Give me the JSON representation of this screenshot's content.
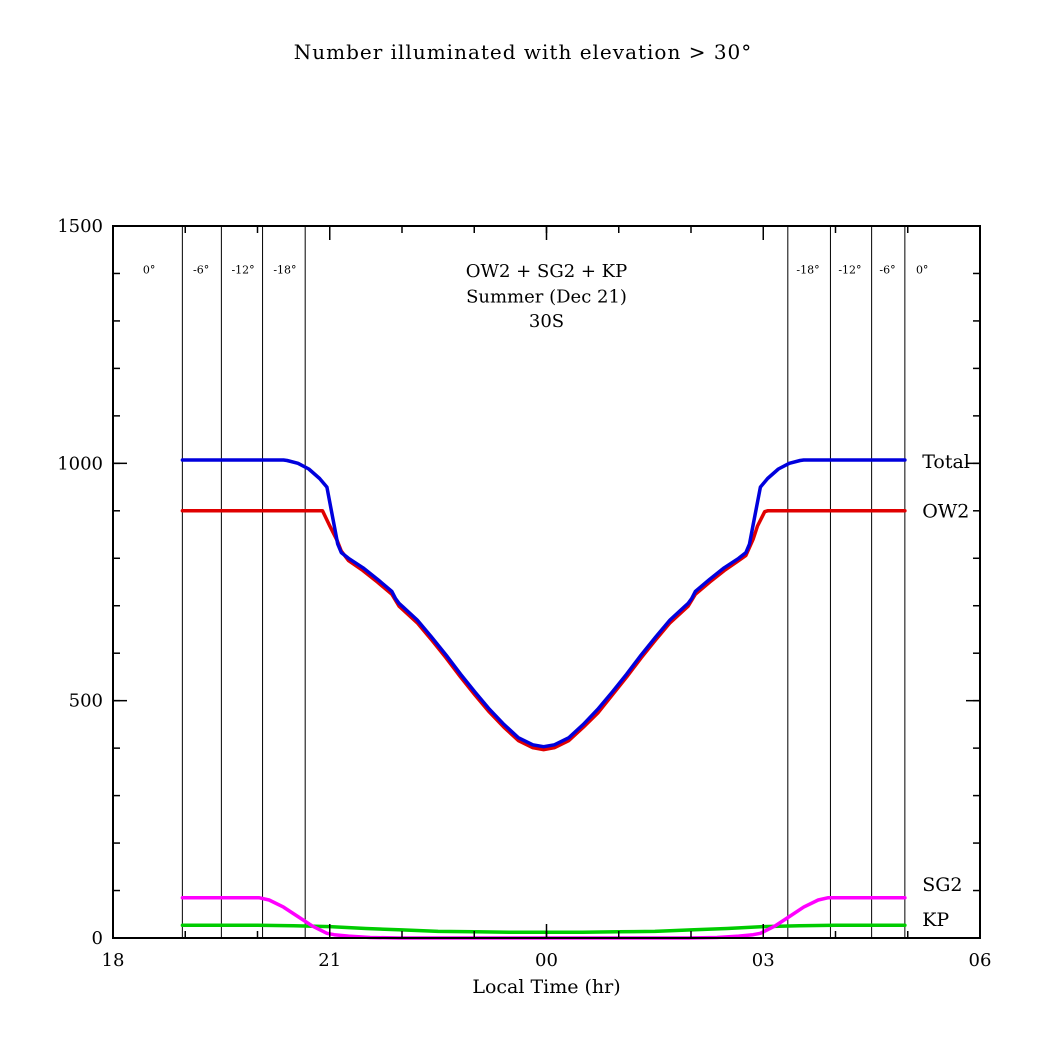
{
  "chart_data": {
    "type": "line",
    "title": "Number illuminated with elevation > 30°",
    "xlabel": "Local Time (hr)",
    "ylabel": "",
    "xlim": [
      18,
      30
    ],
    "ylim": [
      0,
      1500
    ],
    "grid": false,
    "x_minor_step": 1,
    "y_minor_step": 100,
    "x_major_ticks": [
      {
        "t": 18,
        "label": "18"
      },
      {
        "t": 21,
        "label": "21"
      },
      {
        "t": 24,
        "label": "00"
      },
      {
        "t": 27,
        "label": "03"
      },
      {
        "t": 30,
        "label": "06"
      }
    ],
    "y_major_ticks": [
      {
        "v": 0,
        "label": "0"
      },
      {
        "v": 500,
        "label": "500"
      },
      {
        "v": 1000,
        "label": "1000"
      },
      {
        "v": 1500,
        "label": "1500"
      }
    ],
    "annotations": [
      {
        "text": "OW2 + SG2 + KP",
        "t": 24,
        "v": 1405
      },
      {
        "text": "Summer (Dec 21)",
        "t": 24,
        "v": 1352
      },
      {
        "text": "30S",
        "t": 24,
        "v": 1300
      }
    ],
    "twilight_lines": [
      18.96,
      19.5,
      20.07,
      20.66,
      27.34,
      27.93,
      28.5,
      28.96
    ],
    "twilight_label_v": 1408,
    "twilight_labels": [
      {
        "text": "0°",
        "t": 18.5
      },
      {
        "text": "-6°",
        "t": 19.22
      },
      {
        "text": "-12°",
        "t": 19.8
      },
      {
        "text": "-18°",
        "t": 20.38
      },
      {
        "text": "-18°",
        "t": 27.62
      },
      {
        "text": "-12°",
        "t": 28.2
      },
      {
        "text": "-6°",
        "t": 28.72
      },
      {
        "text": "0°",
        "t": 29.2
      }
    ],
    "series": [
      {
        "name": "KP",
        "color": "#00cc00",
        "label_pos": {
          "t": 29.2,
          "v": 38
        },
        "points": [
          [
            18.96,
            27
          ],
          [
            20.0,
            27
          ],
          [
            20.5,
            26
          ],
          [
            21.0,
            24
          ],
          [
            21.5,
            20
          ],
          [
            22.0,
            17
          ],
          [
            22.5,
            14
          ],
          [
            23.0,
            13
          ],
          [
            23.5,
            12
          ],
          [
            24.0,
            12
          ],
          [
            24.5,
            12
          ],
          [
            25.0,
            13
          ],
          [
            25.5,
            14
          ],
          [
            26.0,
            17
          ],
          [
            26.5,
            20
          ],
          [
            27.0,
            24
          ],
          [
            27.5,
            26
          ],
          [
            28.0,
            27
          ],
          [
            28.5,
            27
          ],
          [
            28.96,
            27
          ]
        ]
      },
      {
        "name": "SG2",
        "color": "#ff00ff",
        "label_pos": {
          "t": 29.2,
          "v": 112
        },
        "points": [
          [
            18.96,
            85
          ],
          [
            19.5,
            85
          ],
          [
            20.02,
            85
          ],
          [
            20.16,
            80
          ],
          [
            20.36,
            65
          ],
          [
            20.56,
            45
          ],
          [
            20.76,
            25
          ],
          [
            20.96,
            10
          ],
          [
            21.06,
            7
          ],
          [
            21.26,
            4
          ],
          [
            21.56,
            1
          ],
          [
            21.96,
            0
          ],
          [
            23.0,
            0
          ],
          [
            24.0,
            0
          ],
          [
            25.0,
            0
          ],
          [
            25.96,
            0
          ],
          [
            26.36,
            1
          ],
          [
            26.66,
            4
          ],
          [
            26.86,
            7
          ],
          [
            26.96,
            10
          ],
          [
            27.16,
            25
          ],
          [
            27.36,
            45
          ],
          [
            27.56,
            65
          ],
          [
            27.76,
            80
          ],
          [
            27.9,
            85
          ],
          [
            28.5,
            85
          ],
          [
            28.96,
            85
          ]
        ]
      },
      {
        "name": "OW2",
        "color": "#e00000",
        "label_pos": {
          "t": 29.2,
          "v": 898
        },
        "points": [
          [
            18.96,
            900
          ],
          [
            19.5,
            900
          ],
          [
            20.0,
            900
          ],
          [
            20.5,
            900
          ],
          [
            20.9,
            900
          ],
          [
            21.0,
            868
          ],
          [
            21.1,
            838
          ],
          [
            21.16,
            815
          ],
          [
            21.26,
            795
          ],
          [
            21.46,
            774
          ],
          [
            21.66,
            750
          ],
          [
            21.86,
            724
          ],
          [
            21.96,
            699
          ],
          [
            22.21,
            664
          ],
          [
            22.41,
            628
          ],
          [
            22.61,
            590
          ],
          [
            22.81,
            550
          ],
          [
            23.01,
            512
          ],
          [
            23.21,
            476
          ],
          [
            23.41,
            444
          ],
          [
            23.61,
            416
          ],
          [
            23.81,
            401
          ],
          [
            23.96,
            397
          ],
          [
            24.11,
            401
          ],
          [
            24.31,
            416
          ],
          [
            24.51,
            444
          ],
          [
            24.71,
            474
          ],
          [
            24.91,
            512
          ],
          [
            25.11,
            550
          ],
          [
            25.31,
            590
          ],
          [
            25.51,
            628
          ],
          [
            25.71,
            664
          ],
          [
            25.96,
            699
          ],
          [
            26.06,
            724
          ],
          [
            26.26,
            750
          ],
          [
            26.46,
            774
          ],
          [
            26.66,
            795
          ],
          [
            26.76,
            806
          ],
          [
            26.86,
            840
          ],
          [
            26.92,
            868
          ],
          [
            27.02,
            898
          ],
          [
            27.06,
            900
          ],
          [
            27.5,
            900
          ],
          [
            28.0,
            900
          ],
          [
            28.5,
            900
          ],
          [
            28.96,
            900
          ]
        ]
      },
      {
        "name": "Total",
        "color": "#0000dd",
        "label_pos": {
          "t": 29.2,
          "v": 1003
        },
        "points": [
          [
            18.96,
            1007
          ],
          [
            19.5,
            1007
          ],
          [
            20.0,
            1007
          ],
          [
            20.36,
            1007
          ],
          [
            20.41,
            1006
          ],
          [
            20.56,
            1000
          ],
          [
            20.71,
            988
          ],
          [
            20.86,
            968
          ],
          [
            20.96,
            950
          ],
          [
            21.06,
            870
          ],
          [
            21.11,
            830
          ],
          [
            21.16,
            812
          ],
          [
            21.26,
            800
          ],
          [
            21.46,
            780
          ],
          [
            21.66,
            756
          ],
          [
            21.86,
            730
          ],
          [
            21.91,
            715
          ],
          [
            21.96,
            705
          ],
          [
            22.01,
            698
          ],
          [
            22.21,
            670
          ],
          [
            22.41,
            634
          ],
          [
            22.61,
            596
          ],
          [
            22.81,
            556
          ],
          [
            23.01,
            518
          ],
          [
            23.21,
            482
          ],
          [
            23.41,
            450
          ],
          [
            23.61,
            422
          ],
          [
            23.81,
            407
          ],
          [
            23.96,
            403
          ],
          [
            24.11,
            407
          ],
          [
            24.31,
            422
          ],
          [
            24.51,
            450
          ],
          [
            24.71,
            482
          ],
          [
            24.91,
            518
          ],
          [
            25.11,
            556
          ],
          [
            25.31,
            596
          ],
          [
            25.51,
            634
          ],
          [
            25.71,
            670
          ],
          [
            25.91,
            698
          ],
          [
            25.96,
            705
          ],
          [
            26.01,
            715
          ],
          [
            26.06,
            730
          ],
          [
            26.26,
            756
          ],
          [
            26.46,
            780
          ],
          [
            26.66,
            800
          ],
          [
            26.76,
            812
          ],
          [
            26.81,
            830
          ],
          [
            26.86,
            870
          ],
          [
            26.96,
            950
          ],
          [
            27.06,
            968
          ],
          [
            27.21,
            988
          ],
          [
            27.36,
            1000
          ],
          [
            27.51,
            1006
          ],
          [
            27.56,
            1007
          ],
          [
            28.0,
            1007
          ],
          [
            28.5,
            1007
          ],
          [
            28.96,
            1007
          ]
        ]
      }
    ]
  }
}
